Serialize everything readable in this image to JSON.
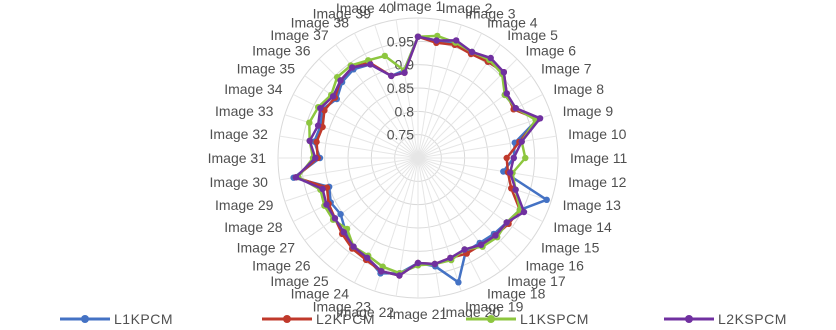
{
  "chart_data": {
    "type": "radar",
    "categories": [
      "Image 1",
      "Image 2",
      "Image 3",
      "Image 4",
      "Image 5",
      "Image 6",
      "Image 7",
      "Image 8",
      "Image 9",
      "Image 10",
      "Image 11",
      "Image 12",
      "Image 13",
      "Image 14",
      "Image 15",
      "Image 16",
      "Image 17",
      "Image 18",
      "Image 19",
      "Image 20",
      "Image 21",
      "Image 22",
      "Image 23",
      "Image 24",
      "Image 25",
      "Image 26",
      "Image 27",
      "Image 28",
      "Image 29",
      "Image 30",
      "Image 31",
      "Image 32",
      "Image 33",
      "Image 34",
      "Image 35",
      "Image 36",
      "Image 37",
      "Image 38",
      "Image 39",
      "Image 40"
    ],
    "rlim": [
      0.7,
      1.0
    ],
    "ring_ticks": [
      0.75,
      0.8,
      0.85,
      0.9,
      0.95
    ],
    "ring_tick_labels": [
      "0.75",
      "0.8",
      "0.85",
      "0.9",
      "0.95"
    ],
    "legend_position": "bottom",
    "series": [
      {
        "name": "L1KPCM",
        "color": "#4472c4",
        "values": [
          0.96,
          0.955,
          0.96,
          0.955,
          0.955,
          0.96,
          0.93,
          0.935,
          0.97,
          0.91,
          0.905,
          0.885,
          0.99,
          0.945,
          0.935,
          0.93,
          0.925,
          0.925,
          0.98,
          0.935,
          0.925,
          0.95,
          0.96,
          0.94,
          0.935,
          0.92,
          0.905,
          0.91,
          0.9,
          0.97,
          0.91,
          0.925,
          0.92,
          0.93,
          0.915,
          0.93,
          0.935,
          0.925,
          0.885,
          0.89
        ]
      },
      {
        "name": "L2KPCM",
        "color": "#c0392b",
        "values": [
          0.96,
          0.95,
          0.955,
          0.95,
          0.955,
          0.96,
          0.935,
          0.93,
          0.97,
          0.92,
          0.89,
          0.895,
          0.91,
          0.945,
          0.94,
          0.935,
          0.93,
          0.93,
          0.925,
          0.93,
          0.925,
          0.955,
          0.955,
          0.945,
          0.94,
          0.93,
          0.92,
          0.915,
          0.905,
          0.965,
          0.915,
          0.92,
          0.915,
          0.925,
          0.92,
          0.935,
          0.94,
          0.93,
          0.885,
          0.885
        ]
      },
      {
        "name": "L1KSPCM",
        "color": "#8dc63f",
        "values": [
          0.96,
          0.965,
          0.96,
          0.955,
          0.96,
          0.955,
          0.93,
          0.935,
          0.965,
          0.925,
          0.93,
          0.905,
          0.92,
          0.945,
          0.935,
          0.94,
          0.935,
          0.92,
          0.93,
          0.93,
          0.93,
          0.95,
          0.945,
          0.935,
          0.935,
          0.915,
          0.925,
          0.925,
          0.92,
          0.96,
          0.925,
          0.935,
          0.945,
          0.94,
          0.93,
          0.945,
          0.945,
          0.935,
          0.93,
          0.89
        ]
      },
      {
        "name": "L2KSPCM",
        "color": "#7030a0",
        "values": [
          0.96,
          0.955,
          0.965,
          0.955,
          0.965,
          0.96,
          0.935,
          0.935,
          0.975,
          0.925,
          0.905,
          0.9,
          0.92,
          0.955,
          0.935,
          0.935,
          0.93,
          0.92,
          0.925,
          0.93,
          0.925,
          0.955,
          0.955,
          0.94,
          0.935,
          0.925,
          0.92,
          0.92,
          0.915,
          0.965,
          0.92,
          0.935,
          0.925,
          0.935,
          0.925,
          0.935,
          0.94,
          0.925,
          0.885,
          0.885
        ]
      }
    ]
  }
}
